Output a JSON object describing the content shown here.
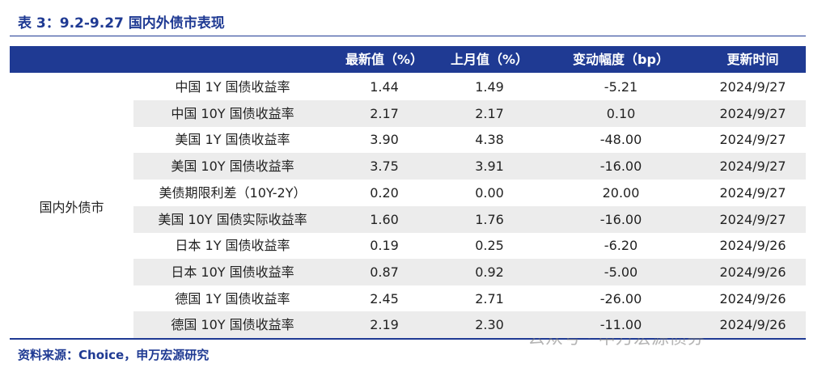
{
  "header": {
    "title": "表 3：9.2-9.27 国内外债市表现"
  },
  "table": {
    "columns": [
      "最新值（%）",
      "上月值（%）",
      "变动幅度（bp）",
      "更新时间"
    ],
    "group": "国内外债市",
    "rows": [
      [
        "中国 1Y 国债收益率",
        "1.44",
        "1.49",
        "-5.21",
        "2024/9/27"
      ],
      [
        "中国 10Y 国债收益率",
        "2.17",
        "2.17",
        "0.10",
        "2024/9/27"
      ],
      [
        "美国 1Y 国债收益率",
        "3.90",
        "4.38",
        "-48.00",
        "2024/9/27"
      ],
      [
        "美国 10Y 国债收益率",
        "3.75",
        "3.91",
        "-16.00",
        "2024/9/27"
      ],
      [
        "美债期限利差（10Y-2Y）",
        "0.20",
        "0.00",
        "20.00",
        "2024/9/27"
      ],
      [
        "美国 10Y 国债实际收益率",
        "1.60",
        "1.76",
        "-16.00",
        "2024/9/27"
      ],
      [
        "日本 1Y 国债收益率",
        "0.19",
        "0.25",
        "-6.20",
        "2024/9/26"
      ],
      [
        "日本 10Y 国债收益率",
        "0.87",
        "0.92",
        "-5.00",
        "2024/9/26"
      ],
      [
        "德国 1Y 国债收益率",
        "2.45",
        "2.71",
        "-26.00",
        "2024/9/26"
      ],
      [
        "德国 10Y 国债收益率",
        "2.19",
        "2.30",
        "-11.00",
        "2024/9/26"
      ]
    ]
  },
  "footer": {
    "source": "资料来源：Choice，申万宏源研究"
  },
  "watermark": "公众号 · 申万宏源债券"
}
